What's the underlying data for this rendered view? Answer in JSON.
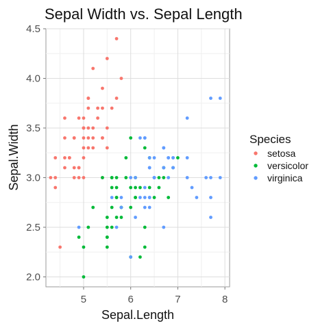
{
  "chart_data": {
    "type": "scatter",
    "title": "Sepal Width vs. Sepal Length",
    "xlabel": "Sepal.Length",
    "ylabel": "Sepal.Width",
    "xlim": [
      4.2,
      8.1
    ],
    "ylim": [
      1.9,
      4.5
    ],
    "x_ticks": [
      5,
      6,
      7,
      8
    ],
    "y_ticks": [
      2.0,
      2.5,
      3.0,
      3.5,
      4.0,
      4.5
    ],
    "grid": true,
    "legend": {
      "title": "Species",
      "position": "right"
    },
    "series": [
      {
        "name": "setosa",
        "color": "#F8766D",
        "points": [
          [
            5.7,
            4.4
          ],
          [
            5.5,
            4.2
          ],
          [
            5.2,
            4.1
          ],
          [
            5.8,
            4.0
          ],
          [
            5.4,
            3.9
          ],
          [
            5.7,
            3.8
          ],
          [
            5.1,
            3.8
          ],
          [
            5.4,
            3.7
          ],
          [
            5.3,
            3.7
          ],
          [
            5.1,
            3.7
          ],
          [
            5.0,
            3.6
          ],
          [
            5.0,
            3.5
          ],
          [
            5.1,
            3.5
          ],
          [
            5.2,
            3.5
          ],
          [
            5.5,
            3.5
          ],
          [
            4.6,
            3.4
          ],
          [
            4.8,
            3.4
          ],
          [
            5.0,
            3.4
          ],
          [
            5.4,
            3.4
          ],
          [
            5.2,
            3.4
          ],
          [
            5.1,
            3.4
          ],
          [
            4.6,
            3.6
          ],
          [
            4.9,
            3.6
          ],
          [
            4.7,
            3.2
          ],
          [
            4.6,
            3.2
          ],
          [
            4.4,
            3.2
          ],
          [
            5.0,
            3.3
          ],
          [
            5.1,
            3.3
          ],
          [
            4.8,
            3.0
          ],
          [
            4.9,
            3.0
          ],
          [
            4.3,
            3.0
          ],
          [
            4.4,
            3.0
          ],
          [
            5.0,
            3.0
          ],
          [
            4.8,
            3.1
          ],
          [
            4.6,
            3.1
          ],
          [
            4.9,
            3.1
          ],
          [
            5.0,
            3.2
          ],
          [
            5.4,
            3.0
          ],
          [
            4.4,
            2.9
          ],
          [
            4.5,
            2.3
          ],
          [
            4.8,
            3.4
          ],
          [
            5.2,
            3.3
          ],
          [
            4.7,
            3.2
          ],
          [
            5.5,
            3.3
          ],
          [
            5.0,
            3.5
          ],
          [
            5.1,
            3.8
          ],
          [
            4.9,
            3.1
          ],
          [
            5.3,
            3.6
          ],
          [
            5.6,
            3.7
          ],
          [
            5.4,
            3.4
          ]
        ]
      },
      {
        "name": "versicolor",
        "color": "#00BA38",
        "points": [
          [
            7.0,
            3.2
          ],
          [
            6.4,
            3.2
          ],
          [
            6.9,
            3.1
          ],
          [
            5.5,
            2.3
          ],
          [
            6.5,
            2.8
          ],
          [
            5.7,
            2.8
          ],
          [
            6.3,
            3.3
          ],
          [
            4.9,
            2.4
          ],
          [
            6.6,
            2.9
          ],
          [
            5.2,
            2.7
          ],
          [
            5.0,
            2.0
          ],
          [
            5.9,
            3.0
          ],
          [
            6.0,
            2.2
          ],
          [
            6.1,
            2.9
          ],
          [
            5.6,
            2.9
          ],
          [
            6.7,
            3.1
          ],
          [
            5.6,
            3.0
          ],
          [
            5.8,
            2.7
          ],
          [
            6.2,
            2.2
          ],
          [
            5.6,
            2.5
          ],
          [
            5.9,
            3.2
          ],
          [
            6.1,
            2.8
          ],
          [
            6.3,
            2.5
          ],
          [
            6.1,
            2.8
          ],
          [
            6.4,
            2.9
          ],
          [
            6.6,
            3.0
          ],
          [
            6.8,
            2.8
          ],
          [
            6.7,
            3.0
          ],
          [
            6.0,
            2.9
          ],
          [
            5.7,
            2.6
          ],
          [
            5.5,
            2.4
          ],
          [
            5.5,
            2.4
          ],
          [
            5.8,
            2.7
          ],
          [
            6.0,
            2.7
          ],
          [
            5.4,
            3.0
          ],
          [
            6.0,
            3.4
          ],
          [
            6.7,
            3.1
          ],
          [
            6.3,
            2.3
          ],
          [
            5.6,
            3.0
          ],
          [
            5.5,
            2.5
          ],
          [
            5.5,
            2.6
          ],
          [
            6.1,
            3.0
          ],
          [
            5.8,
            2.6
          ],
          [
            5.0,
            2.3
          ],
          [
            5.6,
            2.7
          ],
          [
            5.7,
            3.0
          ],
          [
            5.7,
            2.9
          ],
          [
            6.2,
            2.9
          ],
          [
            5.1,
            2.5
          ],
          [
            5.7,
            2.8
          ]
        ]
      },
      {
        "name": "virginica",
        "color": "#619CFF",
        "points": [
          [
            7.7,
            3.8
          ],
          [
            7.9,
            3.8
          ],
          [
            7.2,
            3.6
          ],
          [
            6.2,
            3.4
          ],
          [
            6.3,
            3.4
          ],
          [
            6.7,
            3.3
          ],
          [
            7.2,
            3.2
          ],
          [
            6.9,
            3.2
          ],
          [
            6.4,
            3.2
          ],
          [
            6.5,
            3.2
          ],
          [
            6.8,
            3.2
          ],
          [
            6.7,
            3.1
          ],
          [
            6.9,
            3.1
          ],
          [
            6.4,
            3.1
          ],
          [
            6.3,
            2.9
          ],
          [
            6.5,
            3.0
          ],
          [
            7.6,
            3.0
          ],
          [
            4.9,
            2.5
          ],
          [
            7.3,
            2.9
          ],
          [
            6.7,
            2.5
          ],
          [
            6.4,
            2.7
          ],
          [
            6.8,
            3.0
          ],
          [
            5.7,
            2.5
          ],
          [
            5.8,
            2.8
          ],
          [
            6.5,
            3.0
          ],
          [
            7.7,
            2.6
          ],
          [
            6.0,
            2.2
          ],
          [
            6.9,
            3.2
          ],
          [
            5.6,
            2.8
          ],
          [
            7.7,
            2.8
          ],
          [
            6.3,
            2.7
          ],
          [
            6.7,
            3.3
          ],
          [
            6.2,
            2.8
          ],
          [
            6.1,
            3.0
          ],
          [
            6.4,
            2.8
          ],
          [
            7.2,
            3.0
          ],
          [
            7.4,
            2.8
          ],
          [
            7.9,
            3.0
          ],
          [
            6.4,
            2.8
          ],
          [
            6.3,
            2.8
          ],
          [
            6.1,
            2.6
          ],
          [
            7.7,
            3.0
          ],
          [
            6.3,
            3.4
          ],
          [
            6.4,
            3.1
          ],
          [
            6.0,
            3.0
          ],
          [
            6.9,
            3.1
          ],
          [
            6.7,
            3.1
          ],
          [
            5.8,
            2.7
          ],
          [
            6.8,
            3.2
          ],
          [
            6.5,
            3.0
          ]
        ]
      }
    ]
  }
}
